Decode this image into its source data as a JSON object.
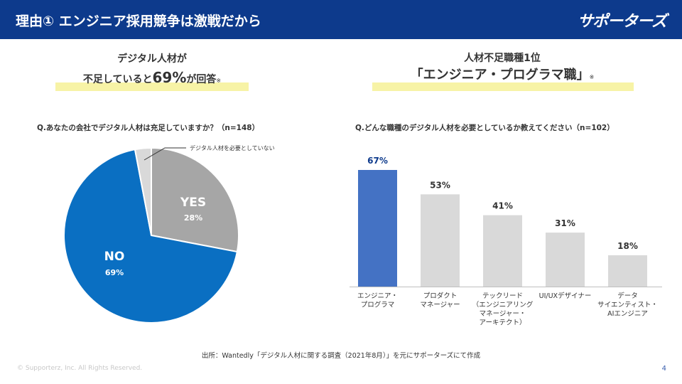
{
  "header": {
    "title": "理由① エンジニア採用競争は激戦だから",
    "brand": "サポーターズ"
  },
  "left_headline": {
    "line1": "デジタル人材が",
    "line2_prefix": "不足していると",
    "line2_big": "69%",
    "line2_suffix": "が回答",
    "note": "※"
  },
  "right_headline": {
    "line1": "人材不足職種1位",
    "line2_big": "「エンジニア・プログラマ職」",
    "note": "※"
  },
  "left_question": "Q.あなたの会社でデジタル人材は充足していますか？（n=148）",
  "right_question": "Q.どんな職種のデジタル人材を必要としているか教えてください（n=102）",
  "source": "出所：Wantedly「デジタル人材に関する調査（2021年8月）」を元にサポーターズにて作成",
  "copyright": "© Supporterz, Inc. All Rights Reserved.",
  "page_number": "4",
  "colors": {
    "header_bg": "#0d3a8c",
    "pie_no": "#0a6fc2",
    "pie_yes": "#a6a6a6",
    "pie_other": "#d9d9d9",
    "bar_highlight": "#4472c4",
    "bar_default": "#d9d9d9",
    "highlight_marker": "#f7f3a6"
  },
  "chart_data": [
    {
      "type": "pie",
      "slices": [
        {
          "label": "YES",
          "value": 28,
          "value_label": "28%",
          "color": "#a6a6a6"
        },
        {
          "label": "NO",
          "value": 69,
          "value_label": "69%",
          "color": "#0a6fc2"
        },
        {
          "label": "デジタル人材を必要としていない",
          "value": 3,
          "value_label": "",
          "color": "#d9d9d9"
        }
      ]
    },
    {
      "type": "bar",
      "categories": [
        [
          "エンジニア・",
          "プログラマ"
        ],
        [
          "プロダクト",
          "マネージャー"
        ],
        [
          "テックリード",
          "（エンジニアリング",
          "マネージャー・",
          "アーキテクト）"
        ],
        [
          "UI/UXデザイナー"
        ],
        [
          "データ",
          "サイエンティスト・",
          "AIエンジニア"
        ]
      ],
      "values": [
        67,
        53,
        41,
        31,
        18
      ],
      "value_labels": [
        "67%",
        "53%",
        "41%",
        "31%",
        "18%"
      ],
      "highlight_index": 0,
      "ylim": [
        0,
        70
      ]
    }
  ]
}
